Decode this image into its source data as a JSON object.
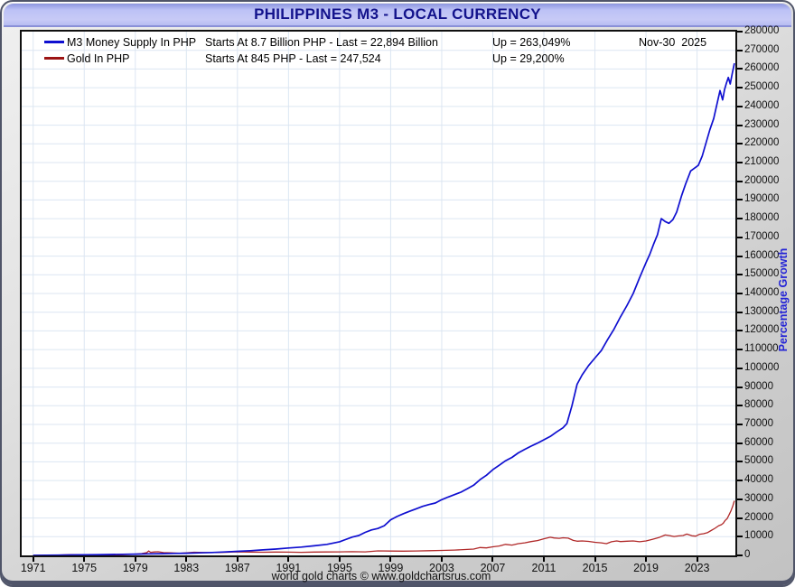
{
  "window": {
    "title": "PHILIPPINES M3 - LOCAL CURRENCY",
    "footer": "world gold charts © www.goldchartsrus.com"
  },
  "legend": {
    "rows": [
      {
        "name": "M3 Money Supply In PHP",
        "stats": "Starts At 8.7 Billion PHP - Last = 22,894 Billion",
        "up": "Up = 263,049%",
        "date": "Nov-30  2025",
        "color": "#0f0fd0"
      },
      {
        "name": "Gold In PHP",
        "stats": "Starts At 845 PHP - Last = 247,524",
        "up": "Up = 29,200%",
        "date": "",
        "color": "#9c1414"
      }
    ]
  },
  "axis": {
    "ylabel": "Percentage Growth",
    "ylabel_color": "#2424d6"
  },
  "colors": {
    "grid": "#dce6f2",
    "plot_border": "#101010",
    "title_text": "#13138c"
  },
  "chart_data": {
    "type": "line",
    "title": "PHILIPPINES M3 - LOCAL CURRENCY",
    "ylabel": "Percentage Growth",
    "xlabel": "",
    "grid": true,
    "legend_position": "top-left-inside",
    "x_range": [
      1970.1,
      2026.0
    ],
    "ylim": [
      0,
      280000
    ],
    "y_tick_step": 10000,
    "x_ticks": [
      1971,
      1975,
      1979,
      1983,
      1987,
      1991,
      1995,
      1999,
      2003,
      2007,
      2011,
      2015,
      2019,
      2023
    ],
    "series": [
      {
        "name": "M3 Money Supply In PHP",
        "color": "#0f0fd0",
        "start_label": "Starts At 8.7 Billion PHP",
        "last_label": "Last = 22,894 Billion",
        "up_pct": 263049,
        "last_date": "Nov-30 2025",
        "points": [
          [
            1971,
            0
          ],
          [
            1972,
            60
          ],
          [
            1973,
            130
          ],
          [
            1974,
            220
          ],
          [
            1975,
            300
          ],
          [
            1976,
            380
          ],
          [
            1977,
            470
          ],
          [
            1978,
            570
          ],
          [
            1979,
            680
          ],
          [
            1980,
            800
          ],
          [
            1981,
            920
          ],
          [
            1982,
            1040
          ],
          [
            1983,
            1180
          ],
          [
            1984,
            1350
          ],
          [
            1985,
            1560
          ],
          [
            1986,
            1820
          ],
          [
            1987,
            2150
          ],
          [
            1988,
            2520
          ],
          [
            1989,
            2950
          ],
          [
            1990,
            3400
          ],
          [
            1991,
            3950
          ],
          [
            1992,
            4450
          ],
          [
            1993,
            5100
          ],
          [
            1994,
            5900
          ],
          [
            1995,
            7300
          ],
          [
            1996,
            9800
          ],
          [
            1996.5,
            10600
          ],
          [
            1997,
            12300
          ],
          [
            1997.5,
            13600
          ],
          [
            1998,
            14400
          ],
          [
            1998.5,
            15900
          ],
          [
            1999,
            19000
          ],
          [
            1999.5,
            20800
          ],
          [
            2000,
            22300
          ],
          [
            2000.5,
            23600
          ],
          [
            2001,
            24900
          ],
          [
            2001.5,
            26200
          ],
          [
            2002,
            27200
          ],
          [
            2002.5,
            28000
          ],
          [
            2003,
            29800
          ],
          [
            2003.5,
            31200
          ],
          [
            2004,
            32500
          ],
          [
            2004.5,
            33800
          ],
          [
            2005,
            35600
          ],
          [
            2005.5,
            37500
          ],
          [
            2006,
            40500
          ],
          [
            2006.5,
            42800
          ],
          [
            2007,
            45800
          ],
          [
            2007.5,
            48200
          ],
          [
            2008,
            50600
          ],
          [
            2008.5,
            52400
          ],
          [
            2009,
            54800
          ],
          [
            2009.5,
            56700
          ],
          [
            2010,
            58400
          ],
          [
            2010.5,
            60000
          ],
          [
            2011,
            61800
          ],
          [
            2011.5,
            63600
          ],
          [
            2012,
            66000
          ],
          [
            2012.5,
            68200
          ],
          [
            2012.8,
            70500
          ],
          [
            2013.2,
            80000
          ],
          [
            2013.6,
            91500
          ],
          [
            2014,
            96500
          ],
          [
            2014.5,
            101500
          ],
          [
            2015,
            105500
          ],
          [
            2015.5,
            109500
          ],
          [
            2016,
            115500
          ],
          [
            2016.5,
            121000
          ],
          [
            2017,
            127500
          ],
          [
            2017.5,
            133500
          ],
          [
            2018,
            140000
          ],
          [
            2018.5,
            148500
          ],
          [
            2019,
            156500
          ],
          [
            2019.3,
            161000
          ],
          [
            2019.6,
            166500
          ],
          [
            2019.9,
            171500
          ],
          [
            2020.2,
            180000
          ],
          [
            2020.5,
            178500
          ],
          [
            2020.8,
            177500
          ],
          [
            2021.1,
            179500
          ],
          [
            2021.4,
            183500
          ],
          [
            2021.8,
            192500
          ],
          [
            2022.1,
            198500
          ],
          [
            2022.5,
            205500
          ],
          [
            2022.8,
            207000
          ],
          [
            2023.1,
            208500
          ],
          [
            2023.4,
            213500
          ],
          [
            2023.7,
            220500
          ],
          [
            2024,
            227500
          ],
          [
            2024.3,
            233500
          ],
          [
            2024.6,
            242500
          ],
          [
            2024.8,
            248500
          ],
          [
            2025,
            243500
          ],
          [
            2025.15,
            249000
          ],
          [
            2025.3,
            252500
          ],
          [
            2025.45,
            255500
          ],
          [
            2025.6,
            252000
          ],
          [
            2025.75,
            257500
          ],
          [
            2025.92,
            263049
          ]
        ]
      },
      {
        "name": "Gold In PHP",
        "color": "#b02828",
        "start_label": "Starts At 845 PHP",
        "last_label": "Last = 247,524",
        "up_pct": 29200,
        "points": [
          [
            1971,
            0
          ],
          [
            1971.5,
            20
          ],
          [
            1972,
            60
          ],
          [
            1972.5,
            120
          ],
          [
            1973,
            200
          ],
          [
            1973.5,
            300
          ],
          [
            1974,
            380
          ],
          [
            1974.5,
            430
          ],
          [
            1975,
            360
          ],
          [
            1975.5,
            300
          ],
          [
            1976,
            240
          ],
          [
            1976.5,
            210
          ],
          [
            1977,
            260
          ],
          [
            1977.5,
            310
          ],
          [
            1978,
            400
          ],
          [
            1978.5,
            500
          ],
          [
            1979,
            650
          ],
          [
            1979.5,
            950
          ],
          [
            1979.9,
            1500
          ],
          [
            1980.05,
            2350
          ],
          [
            1980.2,
            1650
          ],
          [
            1980.5,
            1850
          ],
          [
            1980.8,
            1950
          ],
          [
            1981.2,
            1500
          ],
          [
            1981.8,
            1350
          ],
          [
            1982.5,
            1150
          ],
          [
            1983,
            1400
          ],
          [
            1983.6,
            1700
          ],
          [
            1984.3,
            1550
          ],
          [
            1985,
            1500
          ],
          [
            1986,
            1650
          ],
          [
            1987,
            1900
          ],
          [
            1988,
            1800
          ],
          [
            1989,
            1700
          ],
          [
            1990,
            1800
          ],
          [
            1991,
            1750
          ],
          [
            1992,
            1650
          ],
          [
            1993,
            1800
          ],
          [
            1994,
            1850
          ],
          [
            1995,
            1900
          ],
          [
            1996,
            2000
          ],
          [
            1997,
            1900
          ],
          [
            1998,
            2400
          ],
          [
            1999,
            2300
          ],
          [
            2000,
            2250
          ],
          [
            2001,
            2350
          ],
          [
            2002,
            2500
          ],
          [
            2003,
            2650
          ],
          [
            2004,
            2850
          ],
          [
            2005,
            3200
          ],
          [
            2005.5,
            3400
          ],
          [
            2006,
            4200
          ],
          [
            2006.5,
            4000
          ],
          [
            2007,
            4600
          ],
          [
            2007.5,
            5000
          ],
          [
            2008,
            5900
          ],
          [
            2008.5,
            5500
          ],
          [
            2009,
            6300
          ],
          [
            2009.5,
            6700
          ],
          [
            2010,
            7400
          ],
          [
            2010.5,
            7900
          ],
          [
            2011,
            8900
          ],
          [
            2011.5,
            9700
          ],
          [
            2011.8,
            9300
          ],
          [
            2012.2,
            9100
          ],
          [
            2012.5,
            9400
          ],
          [
            2012.9,
            9200
          ],
          [
            2013.3,
            8000
          ],
          [
            2013.6,
            7600
          ],
          [
            2014,
            7700
          ],
          [
            2014.5,
            7500
          ],
          [
            2015,
            7000
          ],
          [
            2015.5,
            6700
          ],
          [
            2015.9,
            6300
          ],
          [
            2016.3,
            7300
          ],
          [
            2016.7,
            7700
          ],
          [
            2017,
            7400
          ],
          [
            2017.5,
            7600
          ],
          [
            2018,
            7700
          ],
          [
            2018.5,
            7300
          ],
          [
            2019,
            7700
          ],
          [
            2019.5,
            8600
          ],
          [
            2020,
            9500
          ],
          [
            2020.5,
            10900
          ],
          [
            2020.8,
            10600
          ],
          [
            2021.2,
            10100
          ],
          [
            2021.5,
            10400
          ],
          [
            2021.9,
            10600
          ],
          [
            2022.2,
            11400
          ],
          [
            2022.6,
            10500
          ],
          [
            2022.9,
            10300
          ],
          [
            2023.2,
            11300
          ],
          [
            2023.5,
            11600
          ],
          [
            2023.8,
            12100
          ],
          [
            2024.1,
            13300
          ],
          [
            2024.4,
            14500
          ],
          [
            2024.7,
            15900
          ],
          [
            2024.9,
            16400
          ],
          [
            2025.05,
            17200
          ],
          [
            2025.2,
            18700
          ],
          [
            2025.35,
            19600
          ],
          [
            2025.5,
            21600
          ],
          [
            2025.65,
            23800
          ],
          [
            2025.8,
            26500
          ],
          [
            2025.92,
            29200
          ]
        ]
      }
    ]
  }
}
